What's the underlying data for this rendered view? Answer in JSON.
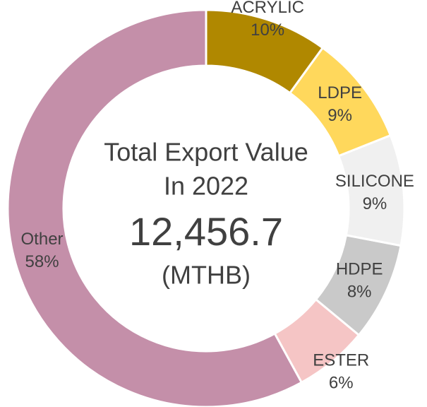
{
  "chart_data": {
    "type": "donut",
    "categories": [
      "ACRYLIC",
      "LDPE",
      "SILICONE",
      "HDPE",
      "ESTER",
      "Other"
    ],
    "values": [
      10,
      9,
      9,
      8,
      6,
      58
    ],
    "value_labels": [
      "10%",
      "9%",
      "9%",
      "8%",
      "6%",
      "58%"
    ],
    "colors": [
      "#b08800",
      "#ffd85c",
      "#f0f0f0",
      "#c9c9c9",
      "#f5c5c5",
      "#c48fa9"
    ],
    "center_text": {
      "title": "Total Export Value",
      "subtitle": "In 2022",
      "total": "12,456.7",
      "unit": "(MTHB)"
    }
  }
}
